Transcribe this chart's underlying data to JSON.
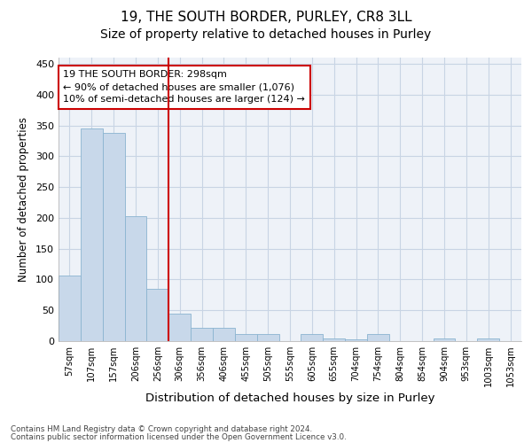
{
  "title": "19, THE SOUTH BORDER, PURLEY, CR8 3LL",
  "subtitle": "Size of property relative to detached houses in Purley",
  "xlabel": "Distribution of detached houses by size in Purley",
  "ylabel": "Number of detached properties",
  "property_label": "19 THE SOUTH BORDER: 298sqm",
  "annotation_line1": "← 90% of detached houses are smaller (1,076)",
  "annotation_line2": "10% of semi-detached houses are larger (124) →",
  "footer_line1": "Contains HM Land Registry data © Crown copyright and database right 2024.",
  "footer_line2": "Contains public sector information licensed under the Open Government Licence v3.0.",
  "bar_color": "#c8d8ea",
  "bar_edge_color": "#8ab4d0",
  "vline_color": "#cc0000",
  "annotation_box_color": "#cc0000",
  "grid_color": "#c8d4e4",
  "background_color": "#eef2f8",
  "categories": [
    "57sqm",
    "107sqm",
    "157sqm",
    "206sqm",
    "256sqm",
    "306sqm",
    "356sqm",
    "406sqm",
    "455sqm",
    "505sqm",
    "555sqm",
    "605sqm",
    "655sqm",
    "704sqm",
    "754sqm",
    "804sqm",
    "854sqm",
    "904sqm",
    "953sqm",
    "1003sqm",
    "1053sqm"
  ],
  "values": [
    107,
    345,
    338,
    203,
    85,
    45,
    22,
    22,
    11,
    11,
    0,
    11,
    5,
    3,
    11,
    0,
    0,
    4,
    0,
    4,
    0
  ],
  "ylim": [
    0,
    460
  ],
  "yticks": [
    0,
    50,
    100,
    150,
    200,
    250,
    300,
    350,
    400,
    450
  ],
  "vline_x_index": 4.5,
  "title_fontsize": 11,
  "subtitle_fontsize": 10,
  "xlabel_fontsize": 9.5,
  "ylabel_fontsize": 8.5
}
